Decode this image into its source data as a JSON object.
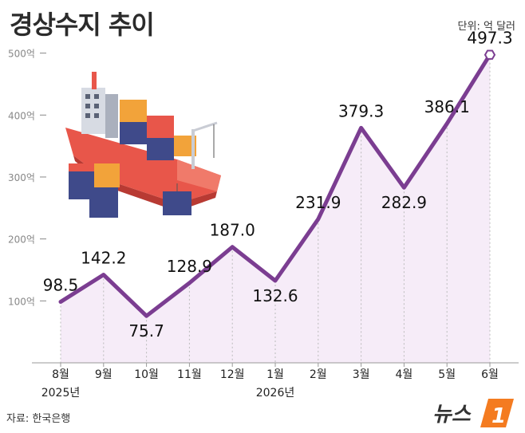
{
  "title": "경상수지 추이",
  "unit_label": "단위: 억 달러",
  "source": "자료: 한국은행",
  "logo_text": "뉴스1",
  "colors": {
    "line": "#7b3d91",
    "fill": "#f6ecf8",
    "grid": "#bbbbbb",
    "logo_orange": "#f47b20",
    "logo_text": "#333333"
  },
  "chart_data": {
    "type": "line",
    "title": "경상수지 추이",
    "xlabel": "",
    "ylabel": "",
    "categories": [
      "8월",
      "9월",
      "10월",
      "11월",
      "12월",
      "1월",
      "2월",
      "3월",
      "4월",
      "5월",
      "6월"
    ],
    "year_labels": [
      {
        "category": "8월",
        "label": "2025년"
      },
      {
        "category": "1월",
        "label": "2026년"
      }
    ],
    "y_ticks": [
      {
        "value": 100,
        "label": "100억"
      },
      {
        "value": 200,
        "label": "200억"
      },
      {
        "value": 300,
        "label": "300억"
      },
      {
        "value": 400,
        "label": "400억"
      },
      {
        "value": 500,
        "label": "500억"
      }
    ],
    "ylim": [
      0,
      530
    ],
    "series": [
      {
        "values": [
          98.5,
          142.2,
          75.7,
          128.9,
          187.0,
          132.6,
          231.9,
          379.3,
          282.9,
          386.1,
          497.3
        ],
        "labels": [
          "98.5",
          "142.2",
          "75.7",
          "128.9",
          "187.0",
          "132.6",
          "231.9",
          "379.3",
          "282.9",
          "386.1",
          "497.3"
        ]
      }
    ],
    "grid": false,
    "legend": "none"
  }
}
